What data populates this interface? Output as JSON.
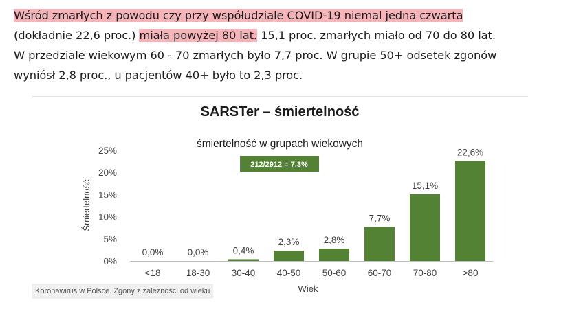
{
  "article": {
    "line1_hl": "Wśród zmarłych z powodu czy przy współudziale COVID-19 niemal jedna czwarta",
    "line2_a": "(dokładnie 22,6 proc.)",
    "line2_hl": "miała powyżej 80 lat.",
    "line2_b": "15,1 proc. zmarłych miało od 70 do 80 lat.",
    "line3": "W przedziale wiekowym 60 - 70 zmarłych było 7,7 proc. W grupie 50+ odsetek zgonów",
    "line4": "wyniósł 2,8 proc., u pacjentów 40+ było to 2,3 proc."
  },
  "colors": {
    "highlight": "#f6b4b8",
    "bar": "#548235",
    "badge": "#548235"
  },
  "chart_data": {
    "type": "bar",
    "title": "SARSTer – śmiertelność",
    "subtitle": "śmiertelność w grupach wiekowych",
    "xlabel": "Wiek",
    "ylabel": "Śmiertelność",
    "badge": "212/2912 = 7,3%",
    "categories": [
      "<18",
      "18-30",
      "30-40",
      "40-50",
      "50-60",
      "60-70",
      "70-80",
      ">80"
    ],
    "values": [
      0.0,
      0.0,
      0.4,
      2.3,
      2.8,
      7.7,
      15.1,
      22.6
    ],
    "value_labels": [
      "0,0%",
      "0,0%",
      "0,4%",
      "2,3%",
      "2,8%",
      "7,7%",
      "15,1%",
      "22,6%"
    ],
    "yticks": [
      0,
      5,
      10,
      15,
      20,
      25
    ],
    "ytick_labels": [
      "0%",
      "5%",
      "10%",
      "15%",
      "20%",
      "25%"
    ],
    "ylim": [
      0,
      25
    ],
    "grid": false
  },
  "caption": "Koronawirus w Polsce. Zgony z zależności od wieku"
}
